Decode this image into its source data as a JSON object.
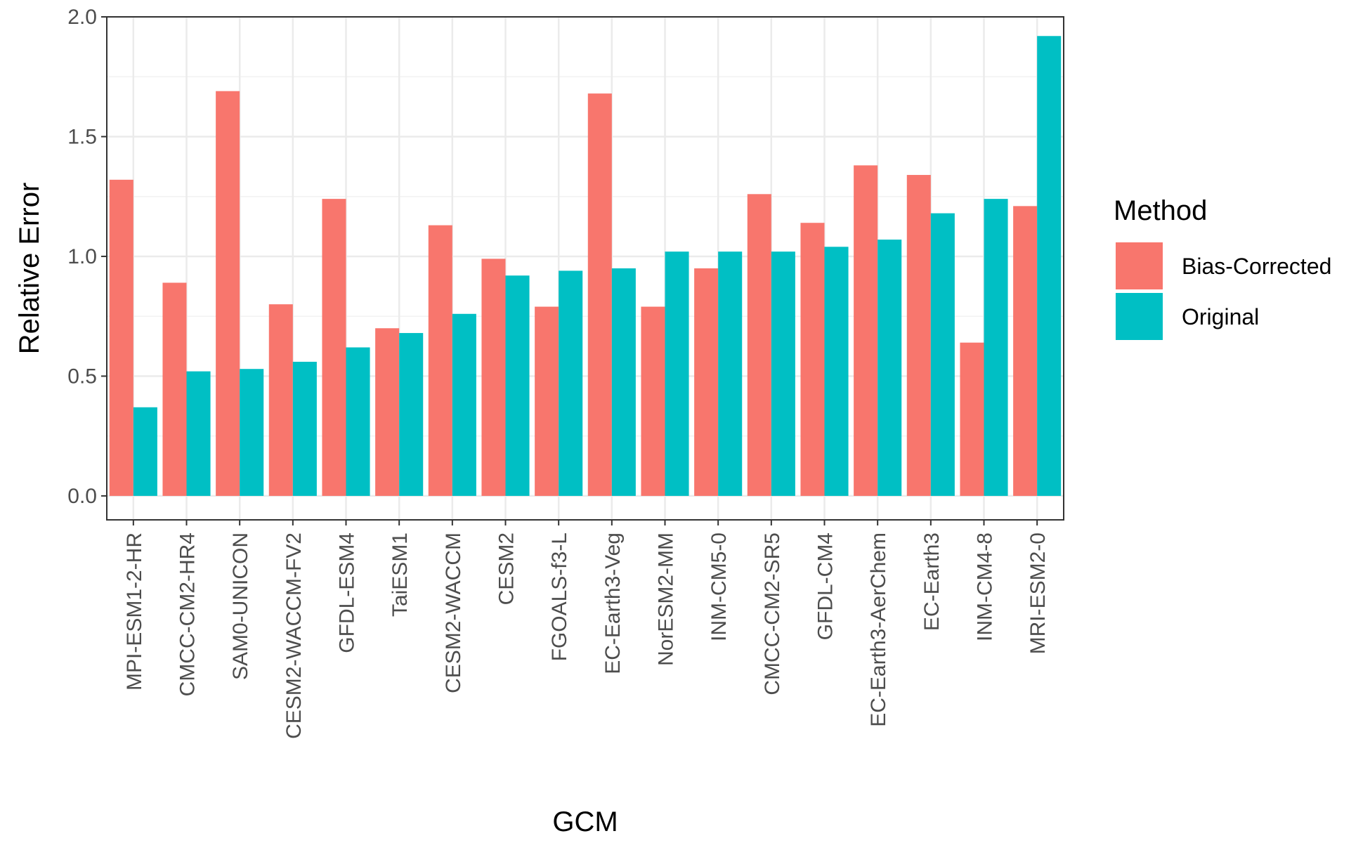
{
  "chart_data": {
    "type": "bar",
    "title": "",
    "xlabel": "GCM",
    "ylabel": "Relative Error",
    "ylim": [
      -0.1,
      2.0
    ],
    "yticks": [
      "0.0",
      "0.5",
      "1.0",
      "1.5",
      "2.0"
    ],
    "grid": true,
    "legend": {
      "title": "Method",
      "placement": "right"
    },
    "categories": [
      "MPI-ESM1-2-HR",
      "CMCC-CM2-HR4",
      "SAM0-UNICON",
      "CESM2-WACCM-FV2",
      "GFDL-ESM4",
      "TaiESM1",
      "CESM2-WACCM",
      "CESM2",
      "FGOALS-f3-L",
      "EC-Earth3-Veg",
      "NorESM2-MM",
      "INM-CM5-0",
      "CMCC-CM2-SR5",
      "GFDL-CM4",
      "EC-Earth3-AerChem",
      "EC-Earth3",
      "INM-CM4-8",
      "MRI-ESM2-0"
    ],
    "series": [
      {
        "name": "Bias-Corrected",
        "color": "#F8766D",
        "values": [
          1.32,
          0.89,
          1.69,
          0.8,
          1.24,
          0.7,
          1.13,
          0.99,
          0.79,
          1.68,
          0.79,
          0.95,
          1.26,
          1.14,
          1.38,
          1.34,
          0.64,
          1.21
        ]
      },
      {
        "name": "Original",
        "color": "#00BFC4",
        "values": [
          0.37,
          0.52,
          0.53,
          0.56,
          0.62,
          0.68,
          0.76,
          0.92,
          0.94,
          0.95,
          1.02,
          1.02,
          1.02,
          1.04,
          1.07,
          1.18,
          1.24,
          1.92
        ]
      }
    ]
  }
}
